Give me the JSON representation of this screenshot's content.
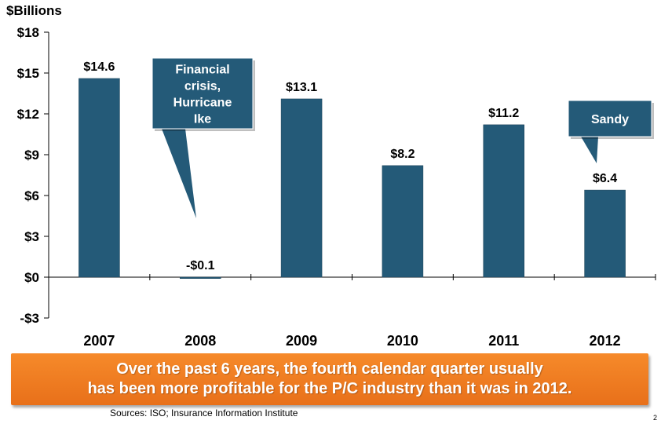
{
  "chart_data": {
    "type": "bar",
    "ylabel": "$Billions",
    "categories": [
      "2007",
      "2008",
      "2009",
      "2010",
      "2011",
      "2012"
    ],
    "values": [
      14.6,
      -0.1,
      13.1,
      8.2,
      11.2,
      6.4
    ],
    "data_labels": [
      "$14.6",
      "-$0.1",
      "$13.1",
      "$8.2",
      "$11.2",
      "$6.4"
    ],
    "ylim": [
      -3,
      18
    ],
    "yticks": [
      18,
      15,
      12,
      9,
      6,
      3,
      0,
      -3
    ],
    "ytick_labels": [
      "$18",
      "$15",
      "$12",
      "$9",
      "$6",
      "$3",
      "$0",
      "-$3"
    ],
    "bar_color": "#245a78",
    "annotations": [
      {
        "target": "2008",
        "lines": [
          "Financial",
          "crisis,",
          "Hurricane",
          "Ike"
        ]
      },
      {
        "target": "2012",
        "lines": [
          "Sandy"
        ]
      }
    ],
    "grid": false,
    "legend": "none"
  },
  "banner": {
    "line1": "Over the past 6 years, the fourth calendar quarter usually",
    "line2": "has been more profitable for the P/C industry than it was in 2012.",
    "color": "#f07f22"
  },
  "source": "Sources: ISO; Insurance Information Institute",
  "page_marker": "2"
}
